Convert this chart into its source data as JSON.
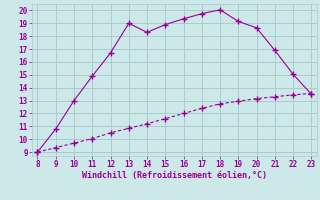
{
  "xlabel": "Windchill (Refroidissement éolien,°C)",
  "line1_x": [
    8,
    9,
    10,
    11,
    12,
    13,
    14,
    15,
    16,
    17,
    18,
    19,
    20,
    21,
    22,
    23
  ],
  "line1_y": [
    9.0,
    10.8,
    13.0,
    14.9,
    16.7,
    19.0,
    18.3,
    18.9,
    19.35,
    19.75,
    20.05,
    19.15,
    18.65,
    16.9,
    15.05,
    13.5
  ],
  "line2_x": [
    8,
    9,
    10,
    11,
    12,
    13,
    14,
    15,
    16,
    17,
    18,
    19,
    20,
    21,
    22,
    23
  ],
  "line2_y": [
    9.0,
    9.35,
    9.7,
    10.05,
    10.5,
    10.85,
    11.2,
    11.6,
    12.0,
    12.4,
    12.75,
    12.95,
    13.15,
    13.3,
    13.45,
    13.55
  ],
  "line_color": "#990099",
  "bg_color": "#cce8e8",
  "grid_color": "#aacccc",
  "xlim": [
    7.7,
    23.3
  ],
  "ylim": [
    8.7,
    20.5
  ],
  "xticks": [
    8,
    9,
    10,
    11,
    12,
    13,
    14,
    15,
    16,
    17,
    18,
    19,
    20,
    21,
    22,
    23
  ],
  "yticks": [
    9,
    10,
    11,
    12,
    13,
    14,
    15,
    16,
    17,
    18,
    19,
    20
  ],
  "tick_fontsize": 5.5,
  "xlabel_fontsize": 6.0
}
